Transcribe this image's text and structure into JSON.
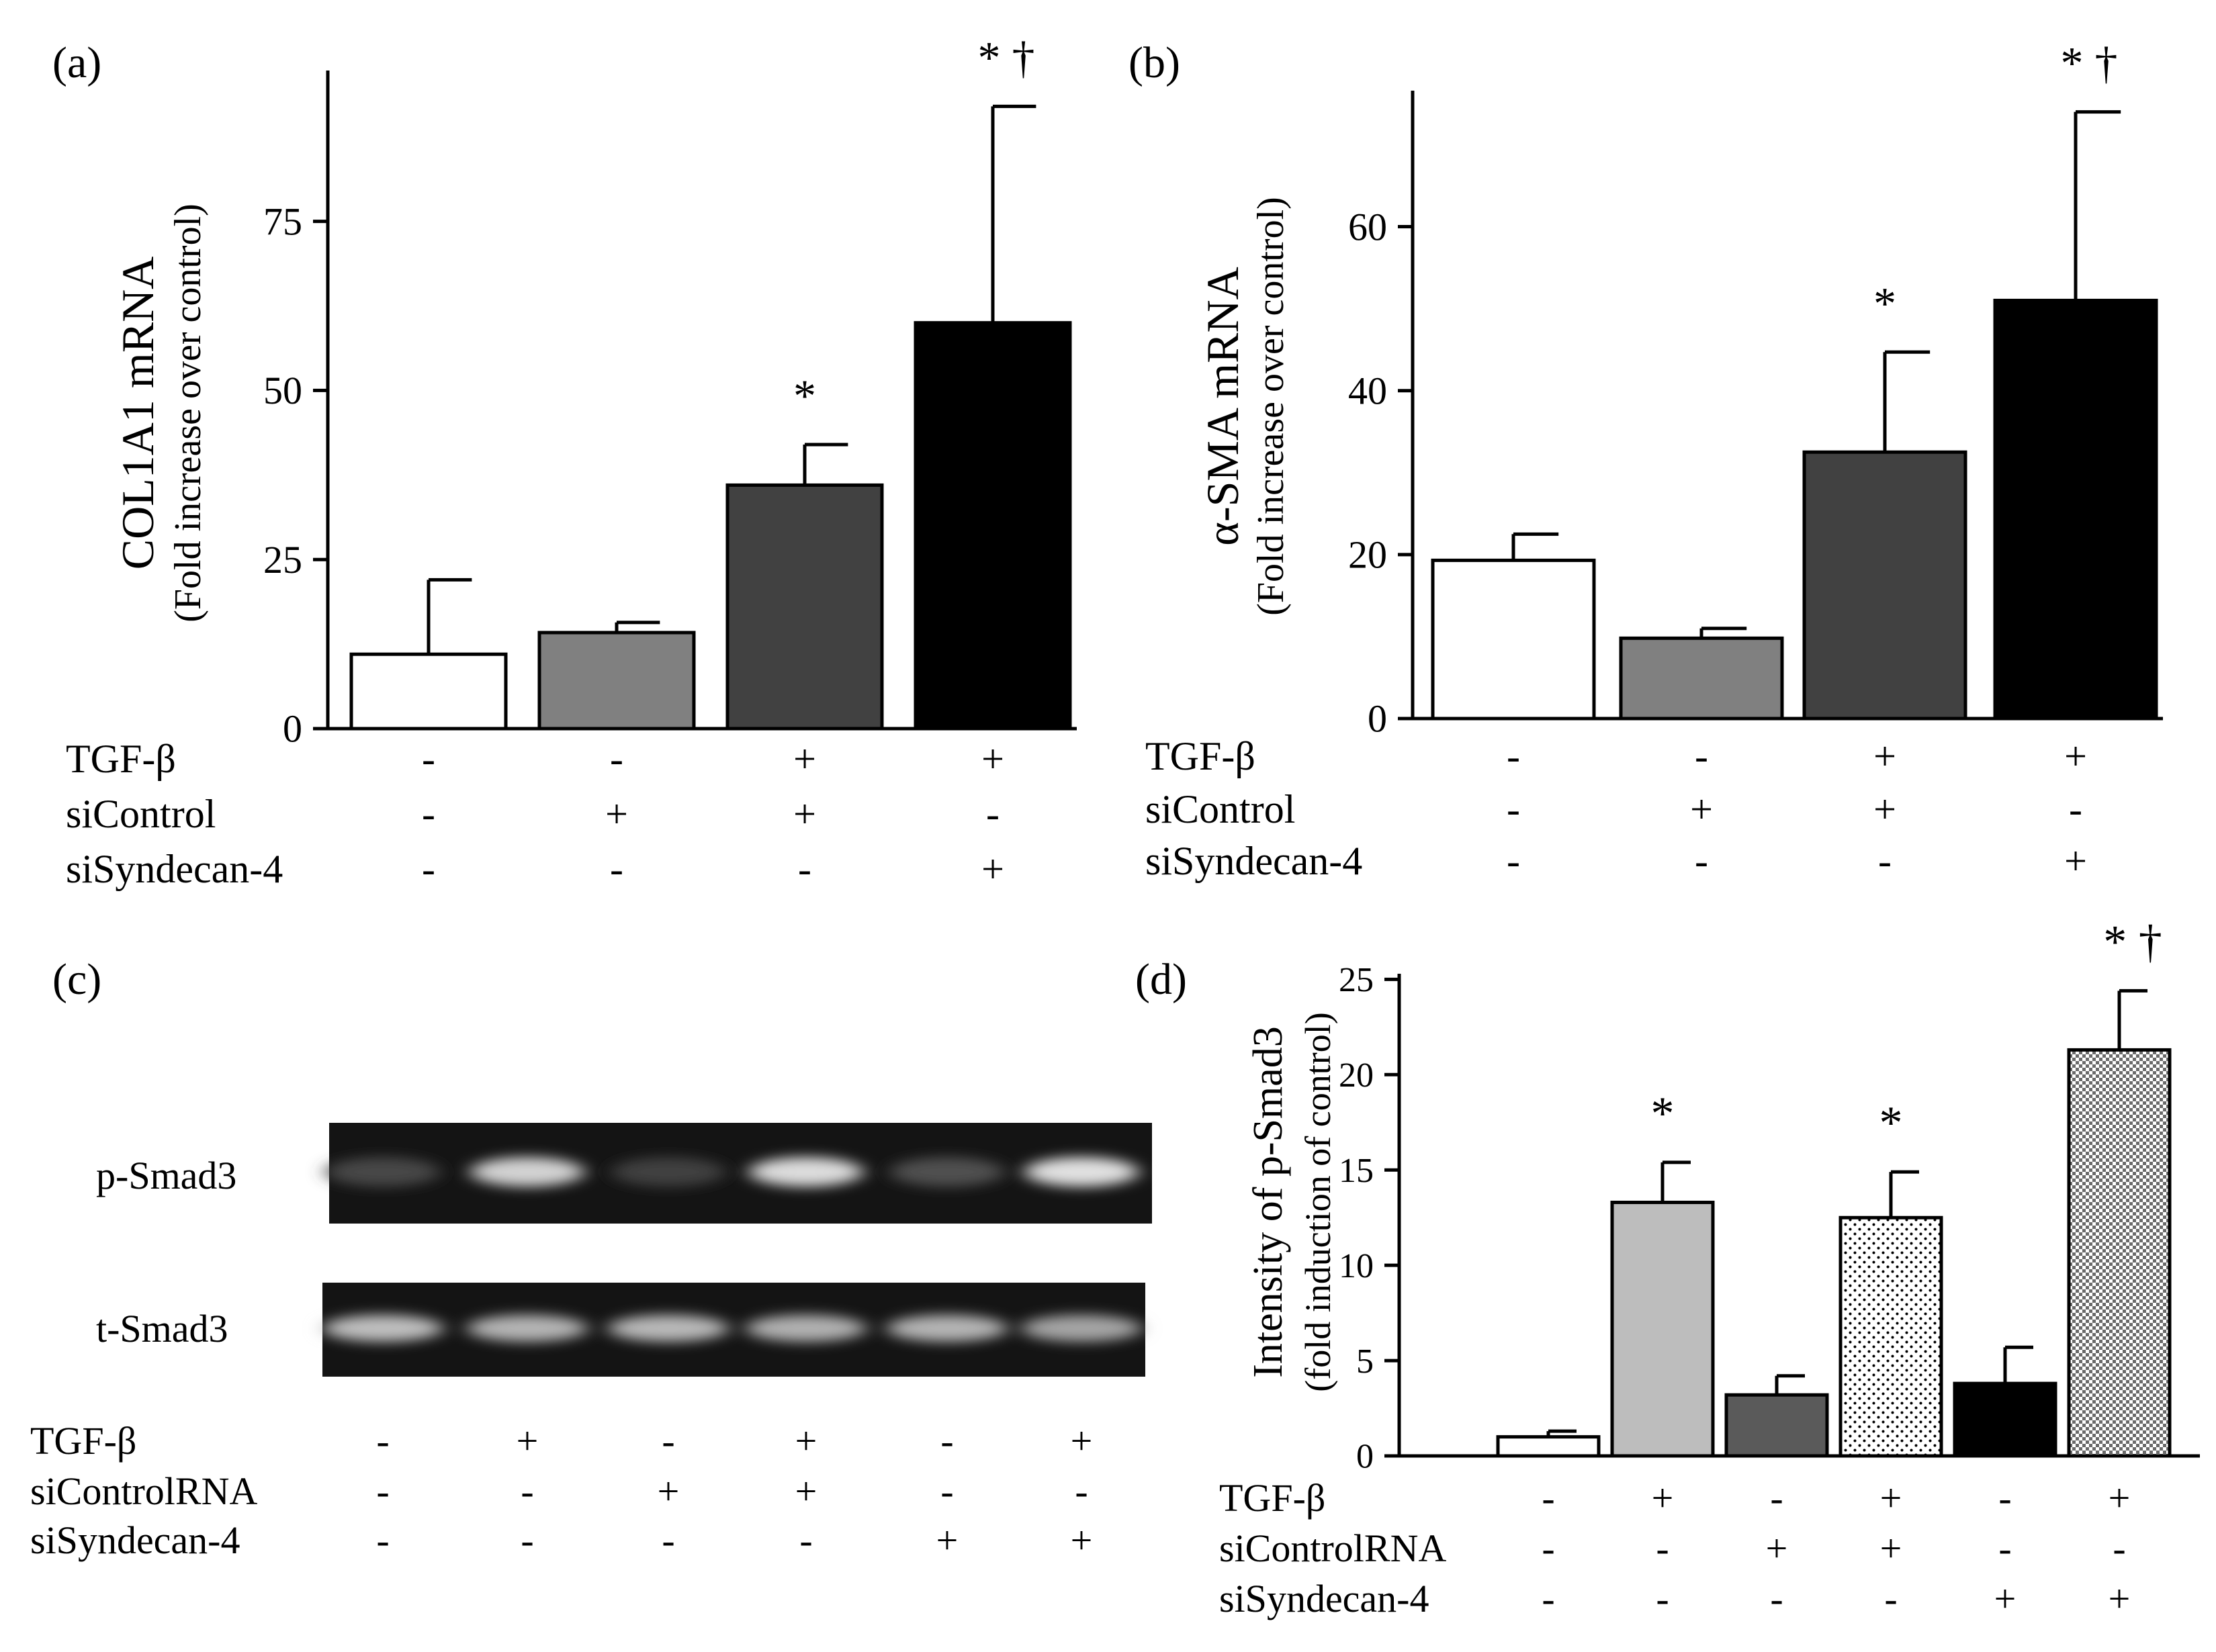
{
  "colors": {
    "white": "#ffffff",
    "light_gray": "#bdbdbd",
    "mid_gray": "#808080",
    "dark_gray": "#414141",
    "darker_gray": "#5a5a5a",
    "black": "#000000"
  },
  "chart_data": [
    {
      "panel": "(a)",
      "type": "bar",
      "ylabel_line1": "COL1A1 mRNA",
      "ylabel_line2": "(Fold increase over control)",
      "yticks": [
        0,
        25,
        50,
        75
      ],
      "ylim": [
        0,
        97
      ],
      "values": [
        11,
        14.2,
        36,
        60
      ],
      "errors": [
        11,
        1.5,
        6,
        32
      ],
      "fills": [
        "white",
        "mid_gray",
        "dark_gray",
        "black"
      ],
      "annotations": [
        "",
        "",
        "*",
        "* †"
      ],
      "condition_rows": [
        {
          "label": "TGF-β",
          "signs": [
            "-",
            "-",
            "+",
            "+"
          ]
        },
        {
          "label": "siControl",
          "signs": [
            "-",
            "+",
            "+",
            "-"
          ]
        },
        {
          "label": "siSyndecan-4",
          "signs": [
            "-",
            "-",
            "-",
            "+"
          ]
        }
      ]
    },
    {
      "panel": "(b)",
      "type": "bar",
      "ylabel_line1": "α-SMA mRNA",
      "ylabel_line2": "(Fold increase over control)",
      "yticks": [
        0,
        20,
        40,
        60
      ],
      "ylim": [
        0,
        77
      ],
      "values": [
        19.3,
        9.8,
        32.5,
        51
      ],
      "errors": [
        3.2,
        1.2,
        12.2,
        23
      ],
      "fills": [
        "white",
        "mid_gray",
        "dark_gray",
        "black"
      ],
      "annotations": [
        "",
        "",
        "*",
        "* †"
      ],
      "condition_rows": [
        {
          "label": "TGF-β",
          "signs": [
            "-",
            "-",
            "+",
            "+"
          ]
        },
        {
          "label": "siControl",
          "signs": [
            "-",
            "+",
            "+",
            "-"
          ]
        },
        {
          "label": "siSyndecan-4",
          "signs": [
            "-",
            "-",
            "-",
            "+"
          ]
        }
      ]
    },
    {
      "panel": "(d)",
      "type": "bar",
      "ylabel_line1": "Intensity of p-Smad3",
      "ylabel_line2": "(fold induction of control)",
      "yticks": [
        0,
        5,
        10,
        15,
        20,
        25
      ],
      "ylim": [
        0,
        26
      ],
      "values": [
        1,
        13.3,
        3.2,
        12.5,
        3.8,
        21.3
      ],
      "errors": [
        0.3,
        2.1,
        1.0,
        2.4,
        1.9,
        3.1
      ],
      "fills": [
        "white",
        "light_gray",
        "darker_gray",
        "dots",
        "black",
        "checker"
      ],
      "annotations": [
        "",
        "*",
        "",
        "*",
        "",
        "* †"
      ],
      "condition_rows": [
        {
          "label": "TGF-β",
          "signs": [
            "-",
            "+",
            "-",
            "+",
            "-",
            "+"
          ]
        },
        {
          "label": "siControlRNA",
          "signs": [
            "-",
            "-",
            "+",
            "+",
            "-",
            "-"
          ]
        },
        {
          "label": "siSyndecan-4",
          "signs": [
            "-",
            "-",
            "-",
            "-",
            "+",
            "+"
          ]
        }
      ]
    }
  ],
  "blot": {
    "panel": "(c)",
    "row1_label": "p-Smad3",
    "row2_label": "t-Smad3",
    "row1_intensities": [
      0.15,
      0.85,
      0.12,
      0.9,
      0.2,
      0.92
    ],
    "row2_intensities": [
      0.75,
      0.7,
      0.72,
      0.68,
      0.7,
      0.62
    ],
    "condition_rows": [
      {
        "label": "TGF-β",
        "signs": [
          "-",
          "+",
          "-",
          "+",
          "-",
          "+"
        ]
      },
      {
        "label": "siControlRNA",
        "signs": [
          "-",
          "-",
          "+",
          "+",
          "-",
          "-"
        ]
      },
      {
        "label": "siSyndecan-4",
        "signs": [
          "-",
          "-",
          "-",
          "-",
          "+",
          "+"
        ]
      }
    ]
  }
}
